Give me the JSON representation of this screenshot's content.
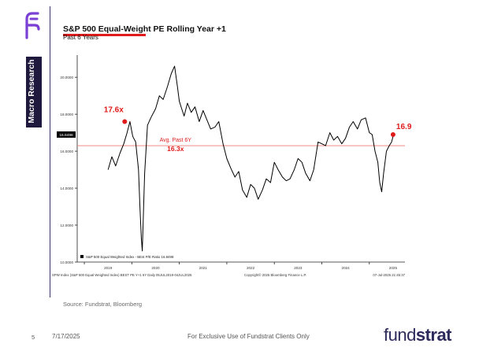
{
  "side_label": "Macro Research",
  "header": {
    "title": "S&P 500 Equal-Weight PE Rolling Year +1",
    "subtitle": "Past 6 Years"
  },
  "chart_data": {
    "type": "line",
    "x_tick_labels": [
      "2019",
      "2020",
      "2021",
      "2022",
      "2023",
      "2024",
      "2025"
    ],
    "y_tick_labels": [
      "10.0000",
      "12.0000",
      "14.0000",
      "16.0000",
      "18.0000",
      "20.0000"
    ],
    "ylim": [
      10,
      21.2
    ],
    "legend": "S&P 500 Equal Weighted Index - BEst P/E Ratio 16.8498",
    "last_value_label": "16.8498",
    "footer_left": "SPW Index (S&P 500 Equal Weighted Index) BEST PE Y+1 6Y Daily 05JUL2019-04JUL2025",
    "footer_mid": "Copyright© 2025 Bloomberg Finance L.P.",
    "footer_right": "07-Jul-2025 21:45:37",
    "average": {
      "value": 16.3,
      "label1": "Avg. Past 6Y",
      "label2": "16.3x"
    },
    "annotations": [
      {
        "label": "17.6x",
        "x": 2019.85,
        "y": 17.6
      },
      {
        "label": "16.9x",
        "x": 2025.5,
        "y": 16.9
      }
    ],
    "series": [
      {
        "x": [
          2019.5,
          2019.58,
          2019.66,
          2019.75,
          2019.83,
          2019.9,
          2019.96,
          2020.02,
          2020.08,
          2020.14,
          2020.17,
          2020.2,
          2020.22,
          2020.27,
          2020.33,
          2020.4,
          2020.5,
          2020.58,
          2020.66,
          2020.75,
          2020.83,
          2020.9,
          2020.96,
          2021.0,
          2021.05,
          2021.1,
          2021.17,
          2021.25,
          2021.33,
          2021.42,
          2021.5,
          2021.58,
          2021.66,
          2021.75,
          2021.83,
          2021.92,
          2022.0,
          2022.08,
          2022.17,
          2022.25,
          2022.33,
          2022.42,
          2022.5,
          2022.58,
          2022.66,
          2022.75,
          2022.83,
          2022.92,
          2023.0,
          2023.08,
          2023.17,
          2023.25,
          2023.33,
          2023.42,
          2023.5,
          2023.58,
          2023.66,
          2023.75,
          2023.83,
          2023.92,
          2024.0,
          2024.08,
          2024.17,
          2024.25,
          2024.33,
          2024.42,
          2024.5,
          2024.58,
          2024.66,
          2024.75,
          2024.83,
          2024.92,
          2025.0,
          2025.06,
          2025.12,
          2025.18,
          2025.22,
          2025.26,
          2025.3,
          2025.36,
          2025.42,
          2025.47,
          2025.51
        ],
        "values": [
          15.0,
          15.7,
          15.2,
          15.9,
          16.4,
          17.0,
          17.6,
          16.8,
          16.5,
          15.0,
          13.0,
          11.3,
          10.6,
          14.8,
          17.4,
          17.8,
          18.3,
          19.0,
          18.8,
          19.5,
          20.2,
          20.6,
          19.5,
          18.7,
          18.3,
          17.9,
          18.6,
          18.1,
          18.4,
          17.6,
          18.2,
          17.7,
          17.2,
          17.3,
          17.6,
          16.4,
          15.6,
          15.1,
          14.6,
          14.9,
          13.9,
          13.5,
          14.2,
          14.0,
          13.4,
          13.9,
          14.5,
          14.3,
          15.4,
          15.0,
          14.6,
          14.4,
          14.5,
          15.0,
          15.6,
          15.4,
          14.8,
          14.4,
          15.0,
          16.5,
          16.4,
          16.3,
          17.0,
          16.6,
          16.8,
          16.4,
          16.7,
          17.3,
          17.6,
          17.2,
          17.7,
          17.8,
          17.0,
          16.9,
          16.0,
          15.4,
          14.3,
          13.8,
          14.8,
          16.0,
          16.3,
          16.5,
          16.9
        ]
      }
    ]
  },
  "source": "Source: Fundstrat, Bloomberg",
  "footer": {
    "page_number": "5",
    "date": "7/17/2025",
    "note": "For Exclusive Use of Fundstrat Clients Only",
    "brand_light": "fund",
    "brand_bold": "strat"
  },
  "colors": {
    "brand": "#2d2a5c",
    "accent_red": "#e01b1b",
    "avg_line": "#f28b82",
    "logo_fill": "#7a3fd4"
  }
}
